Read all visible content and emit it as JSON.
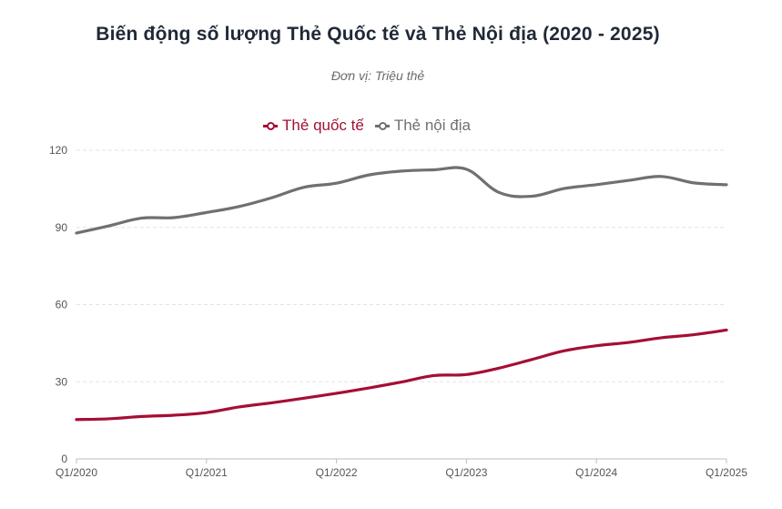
{
  "chart_data": {
    "type": "line",
    "title": "Biến động số lượng Thẻ Quốc tế và Thẻ Nội địa (2020 - 2025)",
    "subtitle": "Đơn vị: Triệu thẻ",
    "xlabel": "",
    "ylabel": "",
    "ylim": [
      0,
      120
    ],
    "yticks": [
      "0",
      "30",
      "60",
      "90",
      "120"
    ],
    "grid": true,
    "legend_position": "top",
    "x": [
      "Q1/2020",
      "Q2/2020",
      "Q3/2020",
      "Q4/2020",
      "Q1/2021",
      "Q2/2021",
      "Q3/2021",
      "Q4/2021",
      "Q1/2022",
      "Q2/2022",
      "Q3/2022",
      "Q4/2022",
      "Q1/2023",
      "Q2/2023",
      "Q3/2023",
      "Q4/2023",
      "Q1/2024",
      "Q2/2024",
      "Q3/2024",
      "Q4/2024",
      "Q1/2025"
    ],
    "xtick_labels": [
      {
        "index": 0,
        "label": "Q1/2020"
      },
      {
        "index": 4,
        "label": "Q1/2021"
      },
      {
        "index": 8,
        "label": "Q1/2022"
      },
      {
        "index": 12,
        "label": "Q1/2023"
      },
      {
        "index": 16,
        "label": "Q1/2024"
      },
      {
        "index": 20,
        "label": "Q1/2025"
      }
    ],
    "series": [
      {
        "name": "Thẻ quốc tế",
        "color": "#a50f34",
        "values": [
          15.3,
          15.6,
          16.5,
          17.0,
          18.0,
          20.2,
          21.8,
          23.6,
          25.5,
          27.6,
          29.9,
          32.4,
          32.8,
          35.3,
          38.6,
          42.0,
          44.0,
          45.3,
          47.1,
          48.3,
          50.1
        ]
      },
      {
        "name": "Thẻ nội địa",
        "color": "#707070",
        "values": [
          87.8,
          90.6,
          93.6,
          93.8,
          95.8,
          98.1,
          101.5,
          105.6,
          107.2,
          110.4,
          111.9,
          112.4,
          112.6,
          103.6,
          102.1,
          105.1,
          106.6,
          108.3,
          109.8,
          107.3,
          106.6
        ]
      }
    ]
  }
}
